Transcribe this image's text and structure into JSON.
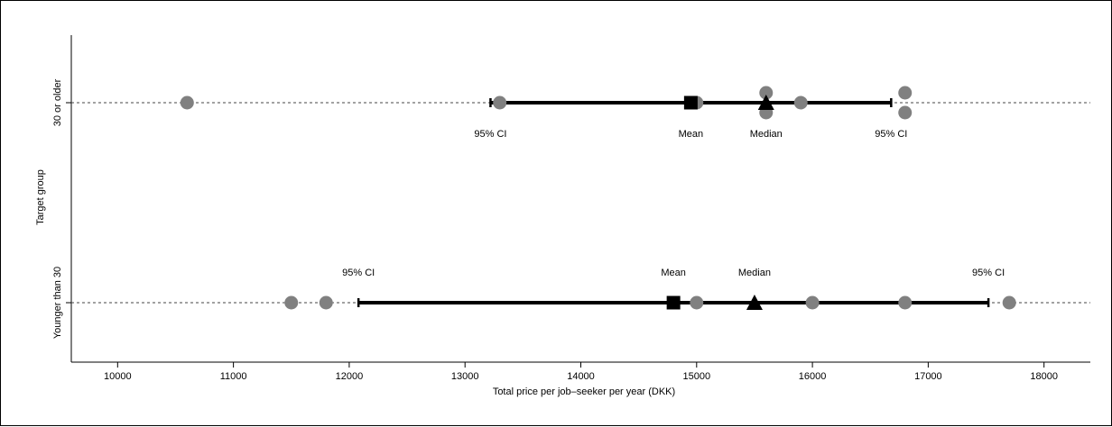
{
  "chart_data": {
    "type": "scatter",
    "xlabel": "Total price per job–seeker per year (DKK)",
    "ylabel": "Target group",
    "xlim": [
      9600,
      18400
    ],
    "x_ticks": [
      10000,
      11000,
      12000,
      13000,
      14000,
      15000,
      16000,
      17000,
      18000
    ],
    "grid": false,
    "ci_label": "95% CI",
    "mean_label": "Mean",
    "median_label": "Median",
    "groups": [
      {
        "name": "30 or older",
        "points": [
          10600,
          13300,
          15000,
          15600,
          15600,
          15900,
          16800,
          16800
        ],
        "mean": 14950,
        "median": 15600,
        "ci": [
          13220,
          16680
        ]
      },
      {
        "name": "Younger than 30",
        "points": [
          11500,
          11800,
          15000,
          16000,
          16800,
          17700
        ],
        "mean": 14800,
        "median": 15500,
        "ci": [
          12080,
          17520
        ]
      }
    ]
  }
}
